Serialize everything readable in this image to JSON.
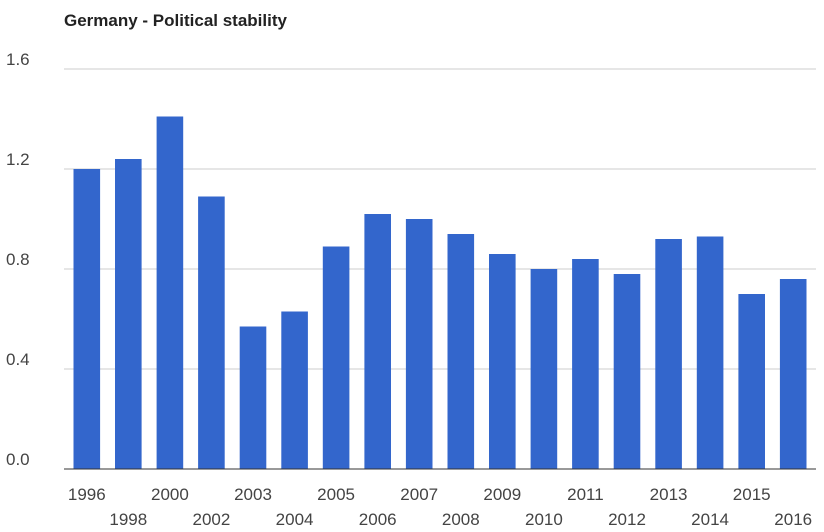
{
  "chart_data": {
    "type": "bar",
    "title": "Germany - Political stability",
    "xlabel": "",
    "ylabel": "",
    "categories": [
      "1996",
      "1998",
      "2000",
      "2002",
      "2003",
      "2004",
      "2005",
      "2006",
      "2007",
      "2008",
      "2009",
      "2010",
      "2011",
      "2012",
      "2013",
      "2014",
      "2015",
      "2016"
    ],
    "values": [
      1.2,
      1.24,
      1.41,
      1.09,
      0.57,
      0.63,
      0.89,
      1.02,
      1.0,
      0.94,
      0.86,
      0.8,
      0.84,
      0.78,
      0.92,
      0.93,
      0.7,
      0.76
    ],
    "ylim": [
      0,
      1.6
    ],
    "yticks": [
      "0.0",
      "0.4",
      "0.8",
      "1.2",
      "1.6"
    ],
    "grid": true,
    "legend": "none",
    "colors": {
      "bar": "#3366cc",
      "grid": "#cccccc",
      "axis": "#333333",
      "text": "#444444",
      "title": "#222222"
    }
  }
}
